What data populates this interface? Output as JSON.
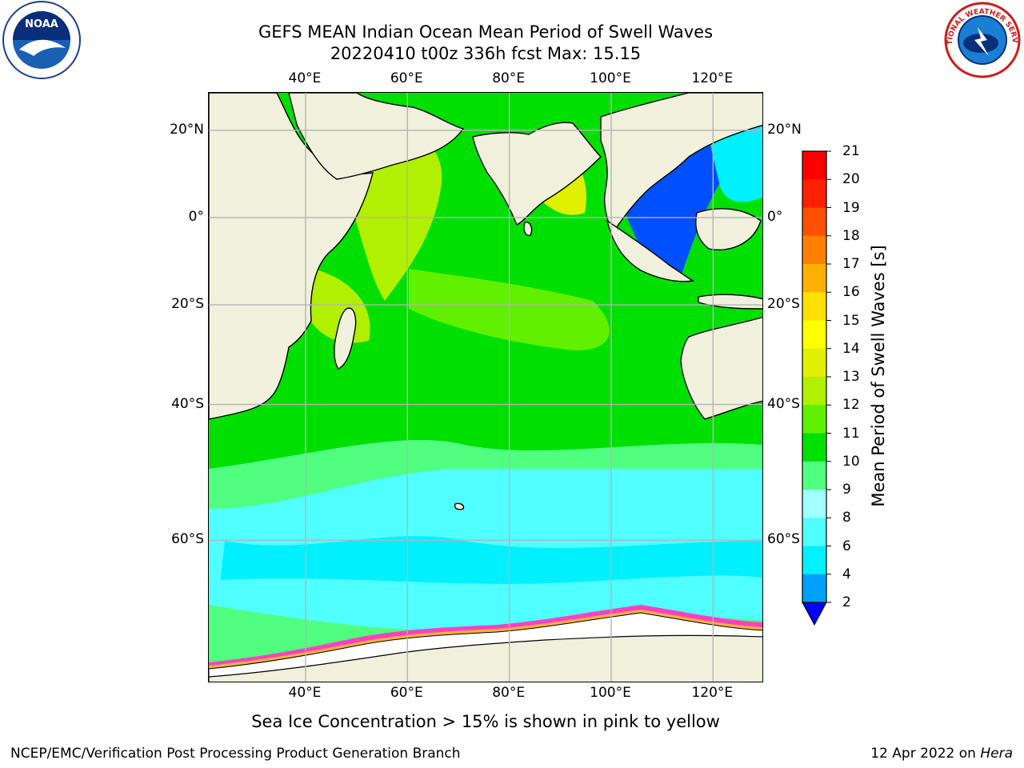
{
  "title": {
    "line1": "GEFS MEAN Indian Ocean Mean Period of Swell Waves",
    "line2": "20220410 t00z 336h fcst   Max: 15.15"
  },
  "axes": {
    "lon_labels": [
      "40°E",
      "60°E",
      "80°E",
      "100°E",
      "120°E"
    ],
    "lat_labels": [
      "20°N",
      "0°",
      "20°S",
      "40°S",
      "60°S"
    ],
    "lon_values": [
      40,
      60,
      80,
      100,
      120
    ],
    "lat_values": [
      20,
      0,
      -20,
      -40,
      -60
    ],
    "gridlines": true
  },
  "colorbar": {
    "title": "Mean Period of Swell Waves [s]",
    "ticks": [
      "2",
      "4",
      "6",
      "8",
      "9",
      "10",
      "11",
      "12",
      "13",
      "14",
      "15",
      "16",
      "17",
      "18",
      "19",
      "20",
      "21"
    ],
    "colors": [
      "#0050ff",
      "#00a0ff",
      "#00f0ff",
      "#50ffff",
      "#a0ffff",
      "#50ff80",
      "#00e000",
      "#60f000",
      "#b0f000",
      "#e0f000",
      "#ffff00",
      "#ffe000",
      "#ffb000",
      "#ff8000",
      "#ff5000",
      "#ff2000",
      "#ff0000"
    ],
    "under_color": "#0000ff"
  },
  "caption": "Sea Ice Concentration > 15% is shown in pink to yellow",
  "footer": {
    "left": "NCEP/EMC/Verification Post Processing Product Generation Branch",
    "date": "12 Apr 2022 on ",
    "host": "Hera"
  },
  "logos": {
    "noaa_text": "NOAA",
    "nws_text": "NATIONAL WEATHER SERVICE"
  },
  "map_colors": {
    "land": "#f0f0dc",
    "ice": "#ffffff",
    "ice_edge": "#ff40c0",
    "ice_edge2": "#ffb040",
    "grid": "#b4b4b4",
    "coast": "#000000"
  }
}
